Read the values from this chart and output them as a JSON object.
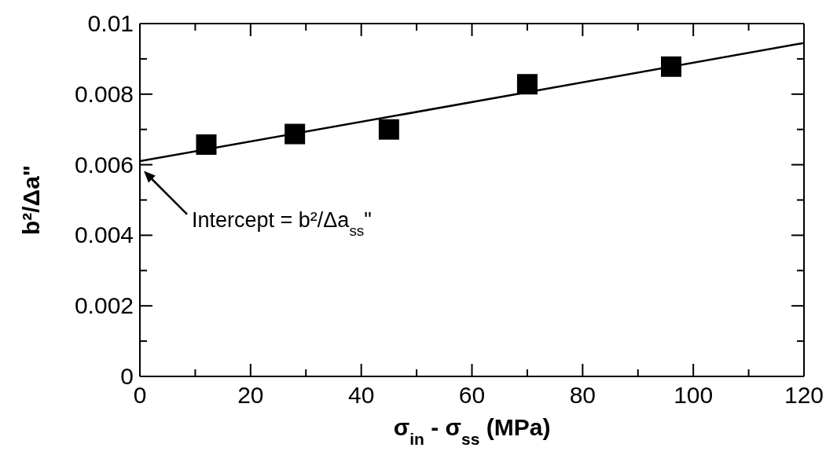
{
  "chart_data": {
    "type": "scatter",
    "xlabel": "σ$_{in}$ - σ$_{ss}$ (MPa)",
    "ylabel": "b²/Δa\"",
    "xlim": [
      0,
      120
    ],
    "ylim": [
      0,
      0.01
    ],
    "xticks": [
      0,
      {
        "value": 10,
        "label": null
      },
      20,
      {
        "value": 30,
        "label": null
      },
      40,
      {
        "value": 50,
        "label": null
      },
      60,
      {
        "value": 70,
        "label": null
      },
      80,
      {
        "value": 90,
        "label": null
      },
      100,
      {
        "value": 110,
        "label": null
      },
      120
    ],
    "yticks": [
      0,
      {
        "value": 0.001,
        "label": null
      },
      0.002,
      {
        "value": 0.003,
        "label": null
      },
      0.004,
      {
        "value": 0.005,
        "label": null
      },
      0.006,
      {
        "value": 0.007,
        "label": null
      },
      0.008,
      {
        "value": 0.009,
        "label": null
      },
      0.01
    ],
    "marker": "square",
    "series": [
      {
        "color": "#000000",
        "x": [
          12,
          28,
          45,
          70,
          96
        ],
        "values": [
          0.00657,
          0.00687,
          0.007,
          0.00828,
          0.00878
        ]
      },
      {
        "type": "line",
        "color": "#000000",
        "x": [
          0,
          120
        ],
        "values": [
          0.0061,
          0.00945
        ],
        "marker": "none",
        "line_style": "solid"
      }
    ],
    "annotations": [
      "Intercept = b²/Δa$_{ss}$\""
    ]
  }
}
